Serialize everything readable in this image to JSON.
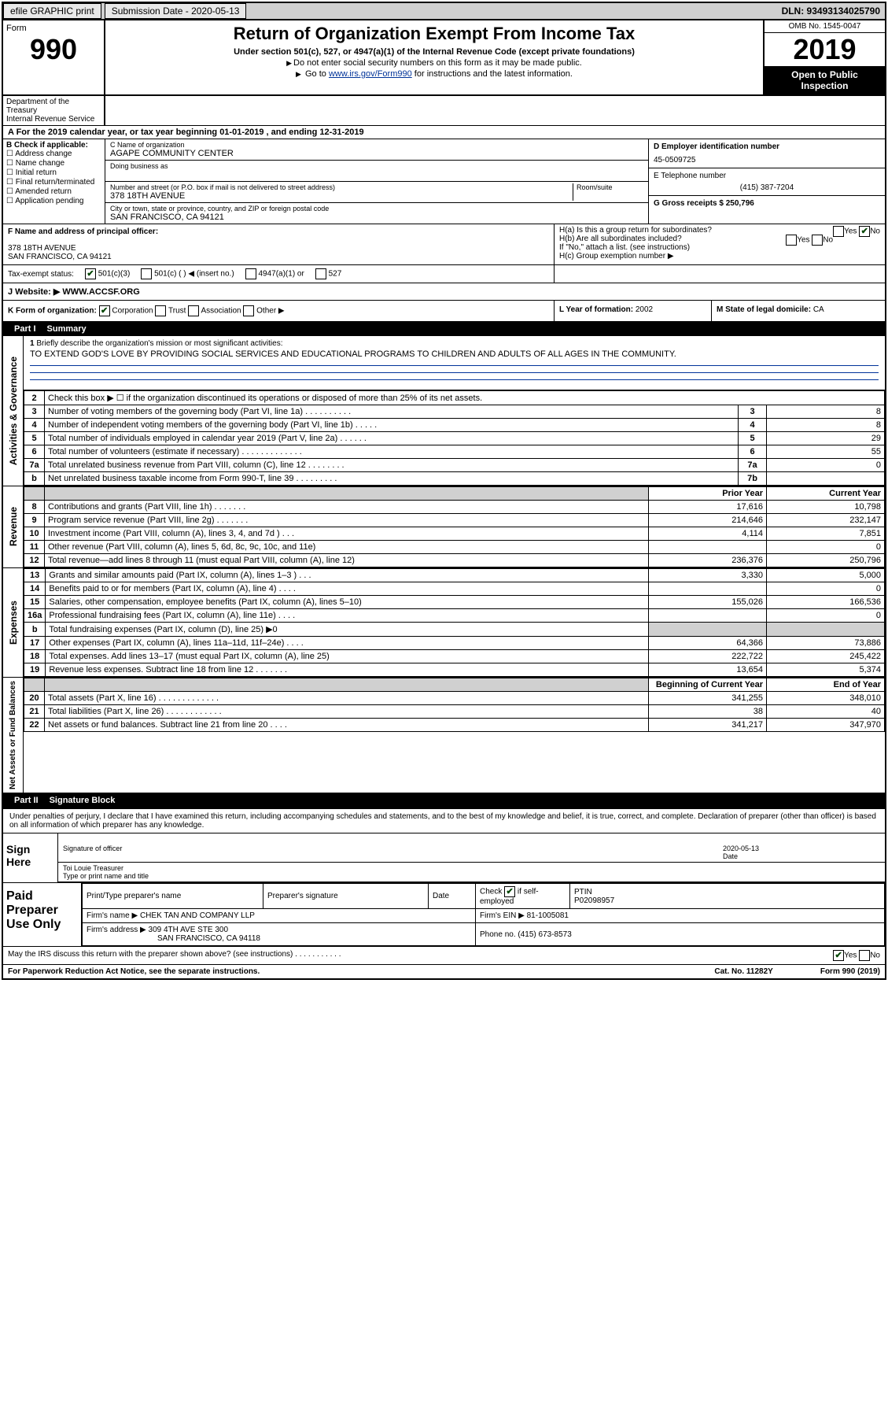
{
  "topbar": {
    "efile": "efile GRAPHIC print",
    "submission": "Submission Date - 2020-05-13",
    "dln": "DLN: 93493134025790"
  },
  "header": {
    "form_word": "Form",
    "form_number": "990",
    "title": "Return of Organization Exempt From Income Tax",
    "subtitle": "Under section 501(c), 527, or 4947(a)(1) of the Internal Revenue Code (except private foundations)",
    "instr1": "Do not enter social security numbers on this form as it may be made public.",
    "instr2_pre": "Go to ",
    "instr2_link": "www.irs.gov/Form990",
    "instr2_post": " for instructions and the latest information.",
    "dept1": "Department of the Treasury",
    "dept2": "Internal Revenue Service",
    "omb": "OMB No. 1545-0047",
    "year": "2019",
    "inspect": "Open to Public Inspection"
  },
  "sec_a": "A  For the 2019 calendar year, or tax year beginning 01-01-2019    , and ending 12-31-2019",
  "sec_b": {
    "label": "B Check if applicable:",
    "items": [
      "Address change",
      "Name change",
      "Initial return",
      "Final return/terminated",
      "Amended return",
      "Application pending"
    ]
  },
  "sec_c": {
    "name_label": "C Name of organization",
    "name": "AGAPE COMMUNITY CENTER",
    "dba_label": "Doing business as",
    "street_label": "Number and street (or P.O. box if mail is not delivered to street address)",
    "room_label": "Room/suite",
    "street": "378 18TH AVENUE",
    "city_label": "City or town, state or province, country, and ZIP or foreign postal code",
    "city": "SAN FRANCISCO, CA  94121"
  },
  "sec_d": {
    "ein_label": "D Employer identification number",
    "ein": "45-0509725",
    "phone_label": "E Telephone number",
    "phone": "(415) 387-7204",
    "gross_label": "G Gross receipts $ 250,796"
  },
  "sec_f": {
    "label": "F Name and address of principal officer:",
    "addr1": "378 18TH AVENUE",
    "addr2": "SAN FRANCISCO, CA  94121"
  },
  "sec_h": {
    "ha": "H(a)  Is this a group return for subordinates?",
    "hb": "H(b)  Are all subordinates included?",
    "hb_note": "If \"No,\" attach a list. (see instructions)",
    "hc": "H(c)  Group exemption number ▶"
  },
  "exempt": {
    "label": "Tax-exempt status:",
    "o1": "501(c)(3)",
    "o2": "501(c) (    ) ◀ (insert no.)",
    "o3": "4947(a)(1) or",
    "o4": "527"
  },
  "website": {
    "label": "J    Website: ▶",
    "value": "WWW.ACCSF.ORG"
  },
  "klm": {
    "k": "K Form of organization:",
    "k_opts": [
      "Corporation",
      "Trust",
      "Association",
      "Other ▶"
    ],
    "l_label": "L Year of formation: ",
    "l_val": "2002",
    "m_label": "M State of legal domicile: ",
    "m_val": "CA"
  },
  "part1": {
    "num": "Part I",
    "title": "Summary"
  },
  "mission": {
    "num": "1",
    "label": "Briefly describe the organization's mission or most significant activities:",
    "text": "TO EXTEND GOD'S LOVE BY PROVIDING SOCIAL SERVICES AND EDUCATIONAL PROGRAMS TO CHILDREN AND ADULTS OF ALL AGES IN THE COMMUNITY."
  },
  "gov_rows": [
    {
      "n": "2",
      "desc": "Check this box ▶ ☐  if the organization discontinued its operations or disposed of more than 25% of its net assets.",
      "box": "",
      "val": ""
    },
    {
      "n": "3",
      "desc": "Number of voting members of the governing body (Part VI, line 1a)   .    .    .    .    .    .    .    .    .    .",
      "box": "3",
      "val": "8"
    },
    {
      "n": "4",
      "desc": "Number of independent voting members of the governing body (Part VI, line 1b)   .    .    .    .    .",
      "box": "4",
      "val": "8"
    },
    {
      "n": "5",
      "desc": "Total number of individuals employed in calendar year 2019 (Part V, line 2a)   .    .    .    .    .    .",
      "box": "5",
      "val": "29"
    },
    {
      "n": "6",
      "desc": "Total number of volunteers (estimate if necessary)    .    .    .    .    .    .    .    .    .    .    .    .    .",
      "box": "6",
      "val": "55"
    },
    {
      "n": "7a",
      "desc": "Total unrelated business revenue from Part VIII, column (C), line 12   .    .    .    .    .    .    .    .",
      "box": "7a",
      "val": "0"
    },
    {
      "n": "b",
      "desc": "Net unrelated business taxable income from Form 990-T, line 39    .    .    .    .    .    .    .    .    .",
      "box": "7b",
      "val": ""
    }
  ],
  "rev_header": {
    "py": "Prior Year",
    "cy": "Current Year"
  },
  "rev_rows": [
    {
      "n": "8",
      "desc": "Contributions and grants (Part VIII, line 1h)   .    .    .    .    .    .    .",
      "py": "17,616",
      "cy": "10,798"
    },
    {
      "n": "9",
      "desc": "Program service revenue (Part VIII, line 2g)   .    .    .    .    .    .    .",
      "py": "214,646",
      "cy": "232,147"
    },
    {
      "n": "10",
      "desc": "Investment income (Part VIII, column (A), lines 3, 4, and 7d )    .    .    .",
      "py": "4,114",
      "cy": "7,851"
    },
    {
      "n": "11",
      "desc": "Other revenue (Part VIII, column (A), lines 5, 6d, 8c, 9c, 10c, and 11e)",
      "py": "",
      "cy": "0"
    },
    {
      "n": "12",
      "desc": "Total revenue—add lines 8 through 11 (must equal Part VIII, column (A), line 12)",
      "py": "236,376",
      "cy": "250,796"
    }
  ],
  "exp_rows": [
    {
      "n": "13",
      "desc": "Grants and similar amounts paid (Part IX, column (A), lines 1–3 )   .    .    .",
      "py": "3,330",
      "cy": "5,000"
    },
    {
      "n": "14",
      "desc": "Benefits paid to or for members (Part IX, column (A), line 4)   .    .    .    .",
      "py": "",
      "cy": "0"
    },
    {
      "n": "15",
      "desc": "Salaries, other compensation, employee benefits (Part IX, column (A), lines 5–10)",
      "py": "155,026",
      "cy": "166,536"
    },
    {
      "n": "16a",
      "desc": "Professional fundraising fees (Part IX, column (A), line 11e)   .    .    .    .",
      "py": "",
      "cy": "0"
    },
    {
      "n": "b",
      "desc": "Total fundraising expenses (Part IX, column (D), line 25) ▶0",
      "py": "shade",
      "cy": "shade"
    },
    {
      "n": "17",
      "desc": "Other expenses (Part IX, column (A), lines 11a–11d, 11f–24e)   .    .    .    .",
      "py": "64,366",
      "cy": "73,886"
    },
    {
      "n": "18",
      "desc": "Total expenses. Add lines 13–17 (must equal Part IX, column (A), line 25)",
      "py": "222,722",
      "cy": "245,422"
    },
    {
      "n": "19",
      "desc": "Revenue less expenses. Subtract line 18 from line 12 .    .    .    .    .    .    .",
      "py": "13,654",
      "cy": "5,374"
    }
  ],
  "net_header": {
    "py": "Beginning of Current Year",
    "cy": "End of Year"
  },
  "net_rows": [
    {
      "n": "20",
      "desc": "Total assets (Part X, line 16)  .    .    .    .    .    .    .    .    .    .    .    .    .",
      "py": "341,255",
      "cy": "348,010"
    },
    {
      "n": "21",
      "desc": "Total liabilities (Part X, line 26)   .    .    .    .    .    .    .    .    .    .    .    .",
      "py": "38",
      "cy": "40"
    },
    {
      "n": "22",
      "desc": "Net assets or fund balances. Subtract line 21 from line 20   .    .    .    .",
      "py": "341,217",
      "cy": "347,970"
    }
  ],
  "part2": {
    "num": "Part II",
    "title": "Signature Block"
  },
  "sig": {
    "perjury": "Under penalties of perjury, I declare that I have examined this return, including accompanying schedules and statements, and to the best of my knowledge and belief, it is true, correct, and complete. Declaration of preparer (other than officer) is based on all information of which preparer has any knowledge.",
    "sign_here": "Sign Here",
    "sig_of_officer": "Signature of officer",
    "sig_date": "2020-05-13",
    "date_label": "Date",
    "officer_name": "Toi Louie  Treasurer",
    "type_name": "Type or print name and title"
  },
  "prep": {
    "label": "Paid Preparer Use Only",
    "h1": "Print/Type preparer's name",
    "h2": "Preparer's signature",
    "h3": "Date",
    "h4_pre": "Check",
    "h4_post": "if self-employed",
    "h5": "PTIN",
    "ptin": "P02098957",
    "firm_label": "Firm's name    ▶",
    "firm_name": "CHEK TAN AND COMPANY LLP",
    "firm_ein_label": "Firm's EIN ▶",
    "firm_ein": "81-1005081",
    "firm_addr_label": "Firm's address ▶",
    "firm_addr1": "309 4TH AVE STE 300",
    "firm_addr2": "SAN FRANCISCO, CA  94118",
    "phone_label": "Phone no.",
    "phone": "(415) 673-8573",
    "discuss": "May the IRS discuss this return with the preparer shown above? (see instructions)   .    .    .    .    .    .    .    .    .    .    ."
  },
  "footer": {
    "left": "For Paperwork Reduction Act Notice, see the separate instructions.",
    "mid": "Cat. No. 11282Y",
    "right": "Form 990 (2019)"
  },
  "labels": {
    "activities": "Activities & Governance",
    "revenue": "Revenue",
    "expenses": "Expenses",
    "netassets": "Net Assets or Fund Balances",
    "yes": "Yes",
    "no": "No"
  },
  "colors": {
    "link": "#003399",
    "bg_shade": "#d0d0d0",
    "black": "#000000"
  }
}
